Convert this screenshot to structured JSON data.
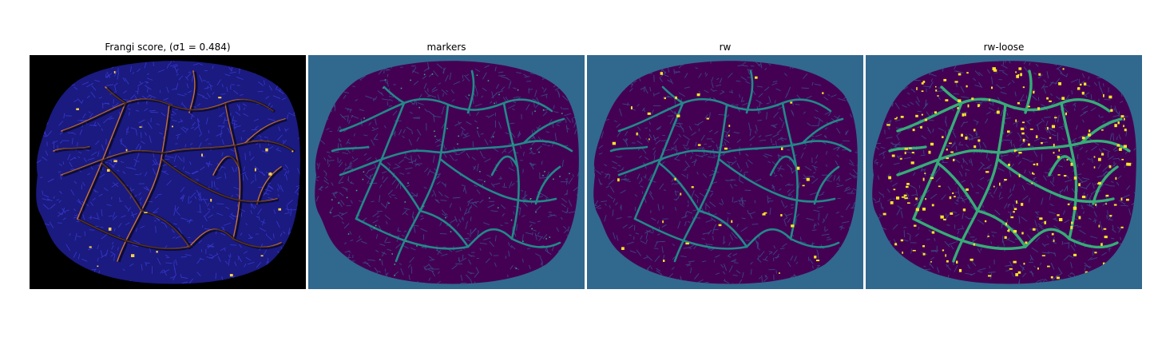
{
  "figure": {
    "panels": [
      {
        "title": "Frangi score, ",
        "title_math": "(σ1 = 0.484)",
        "kind": "frangi",
        "background": "#000000",
        "base": "#1a1a80",
        "texture": "#3b3bd6",
        "vessels": "#ff8c2a",
        "vessel_core": "#ffd34a"
      },
      {
        "title": "markers",
        "kind": "markers",
        "background": "#31688e",
        "base": "#440154",
        "texture": "#3b528b",
        "vessels": "#21918c",
        "vessel_core": "#35b779"
      },
      {
        "title": "rw",
        "kind": "rw",
        "background": "#31688e",
        "base": "#440154",
        "texture": "#3b528b",
        "vessels": "#21918c",
        "vessel_core": "#fde725"
      },
      {
        "title": "rw-loose",
        "kind": "rw-loose",
        "background": "#31688e",
        "base": "#440154",
        "texture": "#3b528b",
        "vessels": "#35b779",
        "vessel_core": "#fde725"
      }
    ]
  }
}
